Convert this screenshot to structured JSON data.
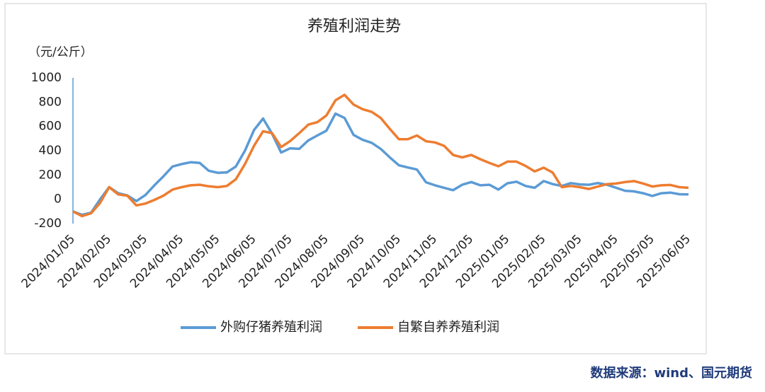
{
  "chart_data": {
    "type": "line",
    "title": "养殖利润走势",
    "y_label": "（元/公斤）",
    "source": "数据来源：wind、国元期货",
    "categories": [
      "2024/01/05",
      null,
      null,
      null,
      "2024/02/05",
      null,
      null,
      null,
      "2024/03/05",
      null,
      null,
      null,
      "2024/04/05",
      null,
      null,
      null,
      "2024/05/05",
      null,
      null,
      null,
      "2024/06/05",
      null,
      null,
      null,
      "2024/07/05",
      null,
      null,
      null,
      "2024/08/05",
      null,
      null,
      null,
      "2024/09/05",
      null,
      null,
      null,
      "2024/10/05",
      null,
      null,
      null,
      "2024/11/05",
      null,
      null,
      null,
      "2024/12/05",
      null,
      null,
      null,
      "2025/01/05",
      null,
      null,
      null,
      "2025/02/05",
      null,
      null,
      null,
      "2025/03/05",
      null,
      null,
      null,
      "2025/04/05",
      null,
      null,
      null,
      "2025/05/05",
      null,
      null,
      null,
      "2025/06/05"
    ],
    "series": [
      {
        "name": "外购仔猪养殖利润",
        "color": "#5b9bd5",
        "values": [
          -100,
          -128,
          -110,
          0,
          100,
          50,
          32,
          -15,
          35,
          115,
          190,
          270,
          290,
          305,
          300,
          235,
          218,
          222,
          270,
          400,
          570,
          665,
          540,
          385,
          420,
          415,
          485,
          525,
          565,
          705,
          670,
          530,
          490,
          465,
          415,
          345,
          280,
          262,
          245,
          140,
          115,
          95,
          75,
          120,
          142,
          115,
          120,
          80,
          132,
          145,
          110,
          95,
          150,
          125,
          110,
          133,
          123,
          120,
          134,
          120,
          95,
          70,
          65,
          50,
          28,
          50,
          55,
          42,
          40
        ]
      },
      {
        "name": "自繁自养养殖利润",
        "color": "#ed7d31",
        "values": [
          -100,
          -138,
          -115,
          -30,
          100,
          40,
          30,
          -50,
          -35,
          -5,
          30,
          80,
          100,
          115,
          120,
          107,
          100,
          110,
          165,
          290,
          440,
          560,
          545,
          430,
          480,
          545,
          615,
          635,
          690,
          815,
          860,
          780,
          742,
          720,
          670,
          580,
          495,
          495,
          525,
          478,
          468,
          440,
          365,
          345,
          365,
          330,
          300,
          272,
          310,
          310,
          275,
          230,
          260,
          220,
          100,
          110,
          100,
          85,
          105,
          125,
          130,
          142,
          150,
          130,
          105,
          115,
          118,
          100,
          95
        ]
      }
    ],
    "ylim": [
      -200,
      1000
    ],
    "yticks": [
      -200,
      0,
      200,
      400,
      600,
      800,
      1000
    ]
  }
}
